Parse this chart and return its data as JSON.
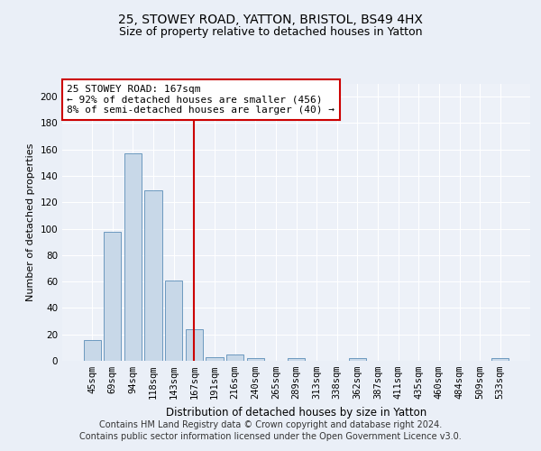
{
  "title1": "25, STOWEY ROAD, YATTON, BRISTOL, BS49 4HX",
  "title2": "Size of property relative to detached houses in Yatton",
  "xlabel": "Distribution of detached houses by size in Yatton",
  "ylabel": "Number of detached properties",
  "categories": [
    "45sqm",
    "69sqm",
    "94sqm",
    "118sqm",
    "143sqm",
    "167sqm",
    "191sqm",
    "216sqm",
    "240sqm",
    "265sqm",
    "289sqm",
    "313sqm",
    "338sqm",
    "362sqm",
    "387sqm",
    "411sqm",
    "435sqm",
    "460sqm",
    "484sqm",
    "509sqm",
    "533sqm"
  ],
  "values": [
    16,
    98,
    157,
    129,
    61,
    24,
    3,
    5,
    2,
    0,
    2,
    0,
    0,
    2,
    0,
    0,
    0,
    0,
    0,
    0,
    2
  ],
  "bar_color": "#c8d8e8",
  "bar_edge_color": "#5b8db8",
  "highlight_index": 5,
  "highlight_line_color": "#cc0000",
  "annotation_text": "25 STOWEY ROAD: 167sqm\n← 92% of detached houses are smaller (456)\n8% of semi-detached houses are larger (40) →",
  "annotation_box_color": "#cc0000",
  "ylim": [
    0,
    210
  ],
  "yticks": [
    0,
    20,
    40,
    60,
    80,
    100,
    120,
    140,
    160,
    180,
    200
  ],
  "footer1": "Contains HM Land Registry data © Crown copyright and database right 2024.",
  "footer2": "Contains public sector information licensed under the Open Government Licence v3.0.",
  "bg_color": "#eaeff7",
  "plot_bg_color": "#edf1f8",
  "grid_color": "#ffffff",
  "title1_fontsize": 10,
  "title2_fontsize": 9,
  "xlabel_fontsize": 8.5,
  "ylabel_fontsize": 8,
  "tick_fontsize": 7.5,
  "footer_fontsize": 7,
  "ann_fontsize": 8
}
